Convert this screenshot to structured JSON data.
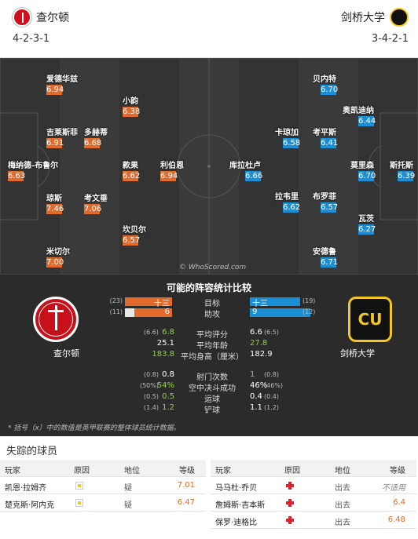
{
  "header": {
    "home_team": "查尔顿",
    "away_team": "剑桥大学",
    "home_formation": "4-2-3-1",
    "away_formation": "3-4-2-1"
  },
  "pitch": {
    "watermark": "© WhoScored.com",
    "home_players": [
      {
        "name": "梅纳德-布鲁尔",
        "rating": "6.63"
      },
      {
        "name": "琼斯",
        "rating": "7.46"
      },
      {
        "name": "米切尔",
        "rating": "7.00"
      },
      {
        "name": "吉莱斯菲",
        "rating": "6.91"
      },
      {
        "name": "爱德华兹",
        "rating": "6.94"
      },
      {
        "name": "考文垂",
        "rating": "7.06"
      },
      {
        "name": "多赫蒂",
        "rating": "6.68"
      },
      {
        "name": "小韵",
        "rating": "6.38"
      },
      {
        "name": "款果",
        "rating": "6.62"
      },
      {
        "name": "坎贝尔",
        "rating": "6.57"
      },
      {
        "name": "利伯恩",
        "rating": "6.94"
      }
    ],
    "away_players": [
      {
        "name": "贝内特",
        "rating": "6.70"
      },
      {
        "name": "奥凯迪纳",
        "rating": "6.44"
      },
      {
        "name": "卡琼加",
        "rating": "6.58"
      },
      {
        "name": "考平斯",
        "rating": "6.41"
      },
      {
        "name": "库拉杜卢",
        "rating": "6.66"
      },
      {
        "name": "拉韦里",
        "rating": "6.62"
      },
      {
        "name": "布罗菲",
        "rating": "6.57"
      },
      {
        "name": "莫里森",
        "rating": "6.70"
      },
      {
        "name": "瓦茨",
        "rating": "6.27"
      },
      {
        "name": "安德鲁",
        "rating": "6.71"
      },
      {
        "name": "斯托斯",
        "rating": "6.39"
      }
    ]
  },
  "stats": {
    "title": "可能的阵容统计比较",
    "home_name": "查尔顿",
    "away_name": "剑桥大学",
    "bars": [
      {
        "label": "目标",
        "home": "十三",
        "home_sub": "(23)",
        "away": "十三",
        "away_sub": "(19)",
        "home_frac": 0.5,
        "away_frac": 0.5
      },
      {
        "label": "助攻",
        "home": "6",
        "home_sub": "(11)",
        "away": "9",
        "away_sub": "(12)",
        "home_frac": 0.4,
        "away_frac": 0.6
      }
    ],
    "rows1": [
      {
        "label": "平均评分",
        "home": "6.8",
        "home_sub": "(6.6)",
        "away": "6.6",
        "away_sub": "(6.5)",
        "home_green": true,
        "away_green": false
      },
      {
        "label": "平均年龄",
        "home": "25.1",
        "home_sub": "",
        "away": "27.8",
        "away_sub": "",
        "home_green": false,
        "away_green": true
      },
      {
        "label": "平均身高（厘米）",
        "home": "183.8",
        "home_sub": "",
        "away": "182.9",
        "away_sub": "",
        "home_green": true,
        "away_green": false
      }
    ],
    "rows2": [
      {
        "label": "射门次数",
        "home": "0.8",
        "home_sub": "(0.8)",
        "away": "1",
        "away_sub": "(0.8)",
        "home_green": false,
        "away_green": true
      },
      {
        "label": "空中决斗成功",
        "home": "54%",
        "home_sub": "(50%)",
        "away": "46%",
        "away_sub": "(46%)",
        "home_green": true,
        "away_green": false
      },
      {
        "label": "运球",
        "home": "0.5",
        "home_sub": "(0.5)",
        "away": "0.4",
        "away_sub": "(0.4)",
        "home_green": true,
        "away_green": false
      },
      {
        "label": "铲球",
        "home": "1.2",
        "home_sub": "(1.4)",
        "away": "1.1",
        "away_sub": "(1.2)",
        "home_green": true,
        "away_green": false
      }
    ],
    "footnote": "* 括号（x）中的数值是英甲联赛的整体球员统计数据。"
  },
  "missing": {
    "title": "失踪的球员",
    "headers": {
      "player": "玩家",
      "reason": "原因",
      "position": "地位",
      "rating": "等级"
    },
    "home": [
      {
        "name": "凯恩·拉姆齐",
        "reason_icon": "doubtful-icon",
        "position": "疑",
        "rating": "7.01"
      },
      {
        "name": "楚克斯·阿内克",
        "reason_icon": "doubtful-icon",
        "position": "疑",
        "rating": "6.47"
      }
    ],
    "away": [
      {
        "name": "马马杜·乔贝",
        "reason_icon": "injury-icon",
        "position": "出去",
        "rating": "不适用"
      },
      {
        "name": "詹姆斯·吉本斯",
        "reason_icon": "injury-icon",
        "position": "出去",
        "rating": "6.4"
      },
      {
        "name": "保罗·迪格比",
        "reason_icon": "injury-icon",
        "position": "出去",
        "rating": "6.48"
      }
    ]
  }
}
